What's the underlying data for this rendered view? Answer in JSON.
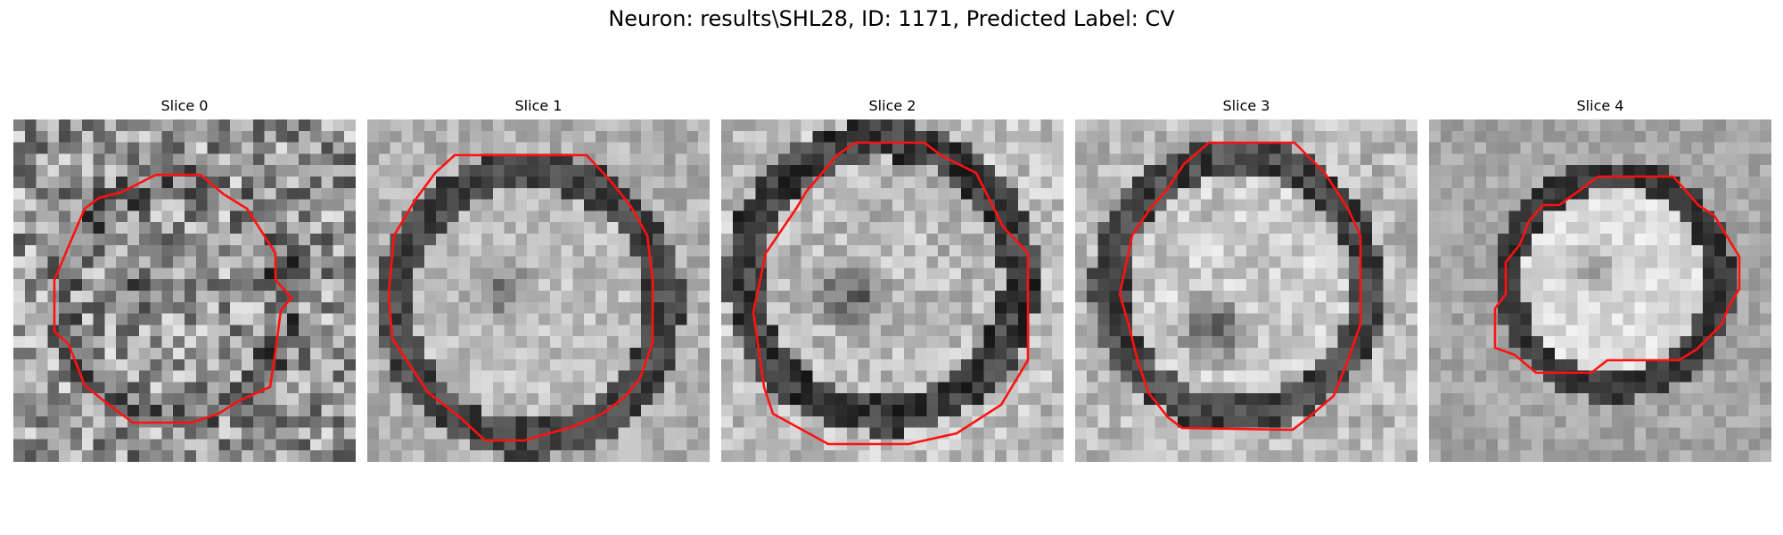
{
  "figure": {
    "title": "Neuron: results\\SHL28, ID: 1171, Predicted Label: CV"
  },
  "contour_color": "#ff1111",
  "panels": [
    {
      "title": "Slice 0",
      "seed": 11,
      "bg": 150,
      "ring": 105,
      "inner": 150,
      "blob": 95,
      "noise": 80
    },
    {
      "title": "Slice 1",
      "seed": 23,
      "bg": 175,
      "ring": 70,
      "inner": 190,
      "blob": 110,
      "noise": 32
    },
    {
      "title": "Slice 2",
      "seed": 37,
      "bg": 190,
      "ring": 60,
      "inner": 185,
      "blob": 80,
      "noise": 40
    },
    {
      "title": "Slice 3",
      "seed": 51,
      "bg": 185,
      "ring": 70,
      "inner": 200,
      "blob": 65,
      "noise": 38
    },
    {
      "title": "Slice 4",
      "seed": 67,
      "bg": 165,
      "ring": 55,
      "inner": 220,
      "blob": 150,
      "noise": 24
    }
  ]
}
